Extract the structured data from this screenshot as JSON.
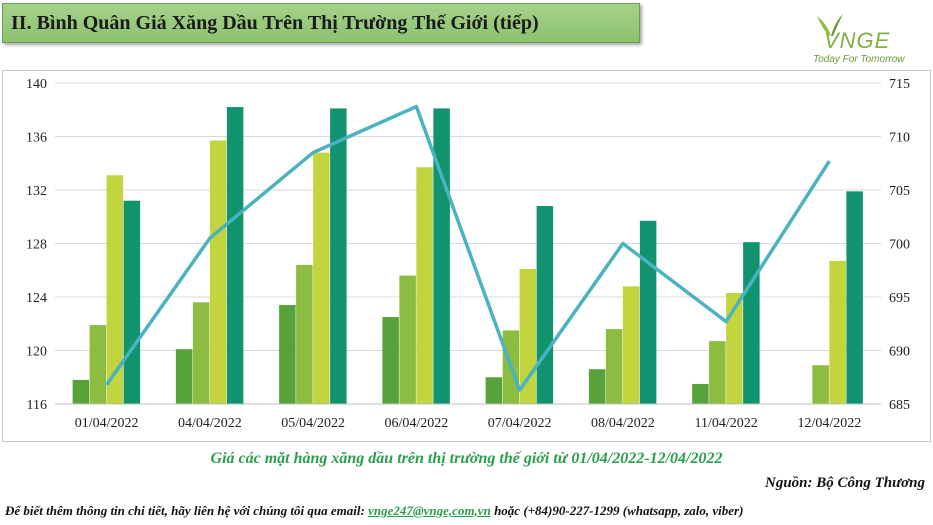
{
  "header": {
    "title": "II. Bình Quân Giá Xăng Dầu Trên Thị Trường Thế Giới (tiếp)"
  },
  "logo": {
    "name": "VNGE",
    "tagline": "Today For Tomorrow"
  },
  "chart_data": {
    "type": "bar",
    "categories": [
      "01/04/2022",
      "04/04/2022",
      "05/04/2022",
      "06/04/2022",
      "07/04/2022",
      "08/04/2022",
      "11/04/2022",
      "12/04/2022"
    ],
    "y_left": {
      "min": 116,
      "max": 140,
      "ticks": [
        116,
        120,
        124,
        128,
        132,
        136,
        140
      ]
    },
    "y_right": {
      "min": 685,
      "max": 715,
      "ticks": [
        685,
        690,
        695,
        700,
        705,
        710,
        715
      ]
    },
    "series": [
      {
        "type": "bar",
        "axis": "left",
        "color": "#58a23c",
        "values": [
          117.8,
          120.1,
          123.4,
          122.5,
          118.0,
          118.6,
          117.5,
          116.0
        ]
      },
      {
        "type": "bar",
        "axis": "left",
        "color": "#8cbc40",
        "values": [
          121.9,
          123.6,
          126.4,
          125.6,
          121.5,
          121.6,
          120.7,
          118.9
        ]
      },
      {
        "type": "bar",
        "axis": "left",
        "color": "#c2d43e",
        "values": [
          133.1,
          135.7,
          134.8,
          133.7,
          126.1,
          124.8,
          124.3,
          126.7
        ]
      },
      {
        "type": "bar",
        "axis": "left",
        "color": "#10936e",
        "values": [
          131.2,
          138.2,
          138.1,
          138.1,
          130.8,
          129.7,
          128.1,
          131.9
        ]
      },
      {
        "type": "line",
        "axis": "right",
        "color": "#4bb2c2",
        "values": [
          686.8,
          700.5,
          708.5,
          712.8,
          686.3,
          700.0,
          692.7,
          707.7
        ]
      }
    ],
    "grid": true,
    "legend": "none"
  },
  "caption": "Giá các mặt hàng xăng dầu trên thị trường thế giới từ 01/04/2022-12/04/2022",
  "source": "Nguồn: Bộ Công Thương",
  "contact": {
    "prefix": "Để biết thêm thông tin chi tiết, hãy liên hệ với chúng tôi qua email:",
    "email": "vnge247@vnge,com,vn",
    "suffix": "hoặc (+84)90-227-1299 (whatsapp, zalo, viber)"
  }
}
